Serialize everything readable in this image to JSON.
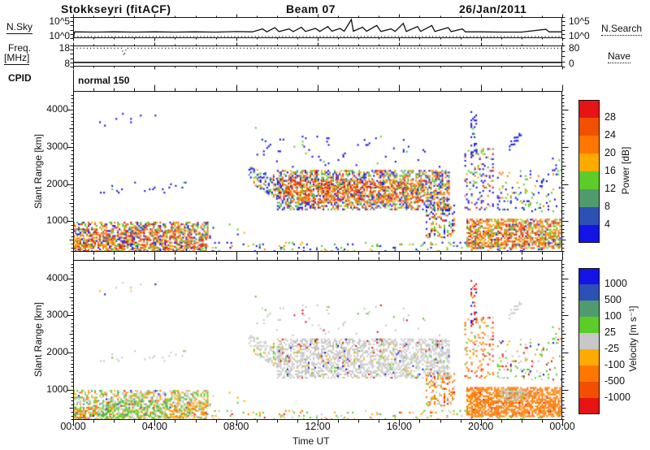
{
  "header": {
    "station": "Stokkseyri (fitACF)",
    "beam": "Beam 07",
    "date": "26/Jan/2011"
  },
  "noise_panel": {
    "left_label": "N.Sky",
    "left_tick_top": "10^5",
    "left_tick_bottom": "10^0",
    "right_tick_top": "10^5",
    "right_tick_bottom": "10^0",
    "right_label": "N.Search"
  },
  "freq_panel": {
    "left_label_line1": "Freq.",
    "left_label_line2": "[MHz]",
    "left_tick_top": "18",
    "left_tick_bottom": "8",
    "right_tick_top": "80",
    "right_tick_bottom": "0",
    "right_label": "Nave"
  },
  "cpid": {
    "label": "CPID",
    "value": "normal 150"
  },
  "power_panel": {
    "ylabel": "Slant Range [km]",
    "yticks": [
      "4000",
      "3000",
      "2000",
      "1000"
    ],
    "colorbar_label": "Power [dB]",
    "colorbar_ticks": [
      "28",
      "24",
      "20",
      "16",
      "12",
      "8",
      "4"
    ]
  },
  "velocity_panel": {
    "ylabel": "Slant Range [km]",
    "yticks": [
      "4000",
      "3000",
      "2000",
      "1000"
    ],
    "colorbar_label": "Velocity [m s⁻¹]",
    "colorbar_ticks": [
      "1000",
      "500",
      "100",
      "25",
      "-25",
      "-100",
      "-500",
      "-1000"
    ]
  },
  "xaxis": {
    "ticks": [
      "00:00",
      "04:00",
      "08:00",
      "12:00",
      "16:00",
      "20:00",
      "00:00"
    ],
    "label": "Time UT"
  },
  "chart_data": {
    "type": "heatmap",
    "subtype": "superdarn-range-time-intensity",
    "time_axis": {
      "hours": [
        0,
        24
      ],
      "major_tick_h": 4,
      "minor_tick_h": 1,
      "tick_labels": [
        "00:00",
        "04:00",
        "08:00",
        "12:00",
        "16:00",
        "20:00",
        "00:00"
      ],
      "label": "Time UT"
    },
    "range_axis": {
      "km": [
        180,
        4500
      ],
      "major_km": 1000,
      "mid_km": 500,
      "minor_km": 100,
      "tick_labels": [
        1000,
        2000,
        3000,
        4000
      ],
      "label": "Slant Range [km]"
    },
    "palette": {
      "blue": "#1414e6",
      "medblue": "#2d50b4",
      "seagreen": "#509b6e",
      "green": "#5ccc28",
      "amber": "#ffaa00",
      "orange": "#ff7700",
      "orangered": "#f05000",
      "red": "#e61414",
      "gray": "#c8c8c8"
    },
    "noise_sky": {
      "style": "solid",
      "log_scale": [
        "10^0",
        "10^5"
      ],
      "series_frac": [
        [
          0,
          0.02
        ],
        [
          0.08,
          0.3
        ],
        [
          1,
          0.29
        ],
        [
          2,
          0.3
        ],
        [
          3,
          0.29
        ],
        [
          4,
          0.3
        ],
        [
          5,
          0.29
        ],
        [
          6,
          0.3
        ],
        [
          7,
          0.29
        ],
        [
          8,
          0.31
        ],
        [
          8.8,
          0.3
        ],
        [
          9.3,
          0.44
        ],
        [
          9.5,
          0.3
        ],
        [
          9.9,
          0.5
        ],
        [
          10.1,
          0.31
        ],
        [
          10.6,
          0.44
        ],
        [
          10.8,
          0.31
        ],
        [
          11.2,
          0.52
        ],
        [
          11.4,
          0.32
        ],
        [
          11.9,
          0.46
        ],
        [
          12.1,
          0.32
        ],
        [
          12.5,
          0.55
        ],
        [
          12.7,
          0.33
        ],
        [
          13.1,
          0.46
        ],
        [
          13.3,
          0.33
        ],
        [
          13.65,
          0.88
        ],
        [
          13.75,
          0.33
        ],
        [
          14.2,
          0.52
        ],
        [
          14.4,
          0.33
        ],
        [
          14.9,
          0.6
        ],
        [
          15.1,
          0.32
        ],
        [
          15.6,
          0.44
        ],
        [
          15.8,
          0.32
        ],
        [
          16.2,
          0.7
        ],
        [
          16.35,
          0.32
        ],
        [
          16.9,
          0.55
        ],
        [
          17.05,
          0.32
        ],
        [
          17.6,
          0.6
        ],
        [
          17.75,
          0.32
        ],
        [
          18.4,
          0.5
        ],
        [
          18.55,
          0.31
        ],
        [
          19.1,
          0.44
        ],
        [
          19.25,
          0.3
        ],
        [
          20,
          0.3
        ],
        [
          21,
          0.29
        ],
        [
          22,
          0.29
        ],
        [
          23.2,
          0.42
        ],
        [
          23.35,
          0.3
        ],
        [
          24,
          0.3
        ]
      ]
    },
    "noise_search": {
      "style": "dotted",
      "level_frac": 0.08
    },
    "frequency": {
      "style": "solid",
      "scale_mhz": [
        8,
        18
      ],
      "value_mhz": 10
    },
    "nave": {
      "style": "dotted",
      "scale": [
        0,
        80
      ],
      "value": 70,
      "dip": {
        "hour": 2.5,
        "value": 42
      }
    },
    "cpid": "normal 150",
    "power": {
      "units": "dB",
      "colorbar": {
        "segment_colors_top_to_bottom": [
          "#e61414",
          "#f05000",
          "#ff7700",
          "#ffaa00",
          "#5ccc28",
          "#509b6e",
          "#2d50b4",
          "#1414e6"
        ],
        "boundary_labels": [
          "28",
          "24",
          "20",
          "16",
          "12",
          "8",
          "4"
        ],
        "label": "Power [dB]"
      },
      "regions": [
        {
          "t": [
            0,
            6.6
          ],
          "r": [
            180,
            950
          ],
          "d": 0.5,
          "c": {
            "blue": 22,
            "green": 18,
            "seagreen": 10,
            "amber": 16,
            "orange": 16,
            "orangered": 10,
            "red": 8
          }
        },
        {
          "t": [
            0,
            24
          ],
          "r": [
            180,
            420
          ],
          "d": 0.1,
          "c": {
            "blue": 45,
            "green": 30,
            "seagreen": 10,
            "amber": 10,
            "orange": 5
          }
        },
        {
          "t": [
            1,
            5.5
          ],
          "r": [
            1750,
            2060
          ],
          "d": 0.05,
          "c": {
            "blue": 90,
            "green": 10
          }
        },
        {
          "t": [
            0.8,
            4.2
          ],
          "r": [
            3550,
            3950
          ],
          "d": 0.02,
          "c": {
            "blue": 100
          }
        },
        {
          "t": [
            8.6,
            10.2
          ],
          "r": [
            [
              2050,
              1500
            ],
            [
              2450,
              2150
            ]
          ],
          "d": 0.4,
          "c": {
            "blue": 40,
            "seagreen": 20,
            "green": 20,
            "amber": 10,
            "orange": 10
          }
        },
        {
          "t": [
            10,
            18.4
          ],
          "r": [
            1300,
            2350
          ],
          "d": 0.5,
          "c": {
            "blue": 28,
            "seagreen": 14,
            "green": 15,
            "amber": 13,
            "orange": 15,
            "orangered": 9,
            "red": 6
          }
        },
        {
          "t": [
            10.5,
            18
          ],
          "r": [
            2400,
            3300
          ],
          "d": 0.025,
          "c": {
            "blue": 85,
            "green": 15
          }
        },
        {
          "t": [
            8.6,
            10.5
          ],
          "r": [
            2500,
            3500
          ],
          "d": 0.04,
          "c": {
            "blue": 95,
            "green": 5
          }
        },
        {
          "t": [
            17.3,
            18.7
          ],
          "r": [
            550,
            1450
          ],
          "d": 0.35,
          "c": {
            "blue": 35,
            "green": 20,
            "amber": 15,
            "orange": 15,
            "red": 10,
            "seagreen": 5
          }
        },
        {
          "t": [
            19.2,
            20.6
          ],
          "r": [
            1300,
            2950
          ],
          "d": 0.22,
          "c": {
            "blue": 40,
            "green": 18,
            "seagreen": 10,
            "amber": 12,
            "orange": 12,
            "red": 8
          }
        },
        {
          "t": [
            19.5,
            19.75
          ],
          "r": [
            2700,
            3950
          ],
          "d": 0.3,
          "c": {
            "blue": 90,
            "green": 10
          }
        },
        {
          "t": [
            19.3,
            24
          ],
          "r": [
            260,
            1050
          ],
          "d": 0.65,
          "c": {
            "green": 16,
            "seagreen": 6,
            "amber": 18,
            "orange": 26,
            "orangered": 16,
            "red": 12,
            "blue": 6
          }
        },
        {
          "t": [
            20.8,
            24
          ],
          "r": [
            1250,
            2350
          ],
          "d": 0.1,
          "c": {
            "blue": 55,
            "green": 25,
            "amber": 10,
            "orange": 10
          }
        },
        {
          "t": [
            21.3,
            21.95
          ],
          "r": [
            [
              2850,
              3250
            ],
            [
              3050,
              3450
            ]
          ],
          "d": 0.3,
          "c": {
            "blue": 100
          }
        },
        {
          "t": [
            23.5,
            24
          ],
          "r": [
            2350,
            2750
          ],
          "d": 0.1,
          "c": {
            "blue": 60,
            "green": 40
          }
        },
        {
          "t": [
            6.6,
            8.6
          ],
          "r": [
            400,
            900
          ],
          "d": 0.04,
          "c": {
            "blue": 70,
            "green": 20,
            "amber": 10
          }
        },
        {
          "t": [
            0,
            6.5
          ],
          "r": [
            250,
            780
          ],
          "d": 0.25,
          "c": {
            "orange": 30,
            "orangered": 25,
            "red": 20,
            "amber": 15,
            "green": 10
          }
        },
        {
          "t": [
            10.3,
            17.2
          ],
          "r": [
            1500,
            2100
          ],
          "d": 0.3,
          "c": {
            "orange": 35,
            "orangered": 25,
            "red": 18,
            "amber": 15,
            "green": 7
          }
        }
      ]
    },
    "velocity": {
      "units": "m s⁻¹",
      "colorbar": {
        "segment_colors_top_to_bottom": [
          "#1414e6",
          "#2d50b4",
          "#509b6e",
          "#5ccc28",
          "#c8c8c8",
          "#ffaa00",
          "#ff7700",
          "#f05000",
          "#e61414"
        ],
        "boundary_labels": [
          "1000",
          "500",
          "100",
          "25",
          "-25",
          "-100",
          "-500",
          "-1000"
        ],
        "label": "Velocity [m s⁻¹]"
      },
      "regions": [
        {
          "t": [
            0,
            6.6
          ],
          "r": [
            180,
            950
          ],
          "d": 0.5,
          "c": {
            "gray": 30,
            "green": 28,
            "seagreen": 10,
            "amber": 18,
            "orange": 10,
            "red": 2,
            "blue": 2
          }
        },
        {
          "t": [
            0,
            24
          ],
          "r": [
            180,
            420
          ],
          "d": 0.1,
          "c": {
            "green": 40,
            "gray": 30,
            "amber": 15,
            "orange": 10,
            "red": 5
          }
        },
        {
          "t": [
            1,
            5.5
          ],
          "r": [
            1750,
            2060
          ],
          "d": 0.05,
          "c": {
            "gray": 90,
            "green": 10
          }
        },
        {
          "t": [
            0.8,
            4.2
          ],
          "r": [
            3550,
            3950
          ],
          "d": 0.02,
          "c": {
            "gray": 60,
            "blue": 20,
            "amber": 20
          }
        },
        {
          "t": [
            8.6,
            10.2
          ],
          "r": [
            [
              2050,
              1500
            ],
            [
              2450,
              2150
            ]
          ],
          "d": 0.4,
          "c": {
            "gray": 80,
            "green": 10,
            "amber": 10
          }
        },
        {
          "t": [
            10,
            18.4
          ],
          "r": [
            1300,
            2350
          ],
          "d": 0.5,
          "c": {
            "gray": 86,
            "green": 4,
            "amber": 4,
            "red": 3,
            "blue": 3
          }
        },
        {
          "t": [
            10.5,
            18
          ],
          "r": [
            2400,
            3300
          ],
          "d": 0.025,
          "c": {
            "gray": 70,
            "green": 15,
            "red": 15
          }
        },
        {
          "t": [
            8.6,
            10.5
          ],
          "r": [
            2500,
            3500
          ],
          "d": 0.04,
          "c": {
            "gray": 80,
            "green": 20
          }
        },
        {
          "t": [
            17.3,
            18.7
          ],
          "r": [
            550,
            1450
          ],
          "d": 0.35,
          "c": {
            "orange": 55,
            "amber": 15,
            "gray": 15,
            "green": 8,
            "red": 7
          }
        },
        {
          "t": [
            19.2,
            20.6
          ],
          "r": [
            1300,
            2950
          ],
          "d": 0.22,
          "c": {
            "orange": 45,
            "amber": 15,
            "gray": 15,
            "green": 12,
            "red": 13
          }
        },
        {
          "t": [
            19.5,
            19.75
          ],
          "r": [
            2700,
            3950
          ],
          "d": 0.3,
          "c": {
            "red": 50,
            "blue": 30,
            "orange": 20
          }
        },
        {
          "t": [
            19.3,
            24
          ],
          "r": [
            260,
            1050
          ],
          "d": 0.7,
          "c": {
            "orange": 88,
            "amber": 6,
            "orangered": 4,
            "red": 2
          }
        },
        {
          "t": [
            20.8,
            24
          ],
          "r": [
            1250,
            2350
          ],
          "d": 0.1,
          "c": {
            "green": 45,
            "gray": 25,
            "red": 12,
            "amber": 10,
            "blue": 8
          }
        },
        {
          "t": [
            21.3,
            21.95
          ],
          "r": [
            [
              2850,
              3250
            ],
            [
              3050,
              3450
            ]
          ],
          "d": 0.3,
          "c": {
            "gray": 100
          }
        },
        {
          "t": [
            23.5,
            24
          ],
          "r": [
            2350,
            2750
          ],
          "d": 0.1,
          "c": {
            "green": 50,
            "gray": 30,
            "orange": 20
          }
        },
        {
          "t": [
            6.6,
            8.6
          ],
          "r": [
            400,
            900
          ],
          "d": 0.04,
          "c": {
            "green": 50,
            "gray": 30,
            "amber": 20
          }
        },
        {
          "t": [
            0,
            1.3
          ],
          "r": [
            220,
            520
          ],
          "d": 0.3,
          "c": {
            "orange": 40,
            "amber": 30,
            "gray": 30
          }
        },
        {
          "t": [
            1.3,
            4.6
          ],
          "r": [
            250,
            700
          ],
          "d": 0.3,
          "c": {
            "green": 60,
            "seagreen": 20,
            "gray": 10,
            "amber": 10
          }
        },
        {
          "t": [
            4.6,
            6.5
          ],
          "r": [
            250,
            650
          ],
          "d": 0.25,
          "c": {
            "amber": 50,
            "orange": 30,
            "gray": 20
          }
        },
        {
          "t": [
            20.9,
            22.3
          ],
          "r": [
            700,
            980
          ],
          "d": 0.5,
          "c": {
            "gray": 90,
            "green": 10
          }
        }
      ]
    }
  }
}
